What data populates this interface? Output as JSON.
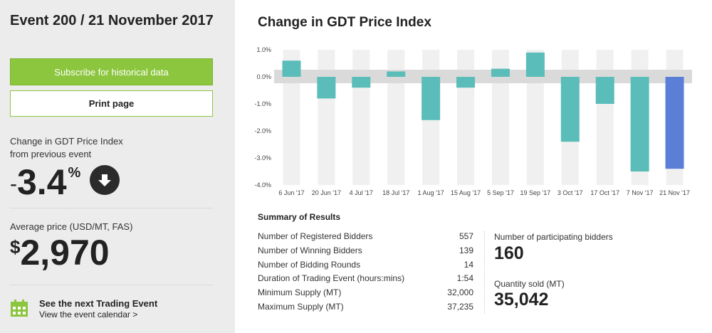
{
  "sidebar": {
    "event_title": "Event 200 / 21 November 2017",
    "subscribe_label": "Subscribe for historical data",
    "print_label": "Print page",
    "change_label_line1": "Change in GDT Price Index",
    "change_label_line2": "from previous event",
    "change_sign": "-",
    "change_value": "3.4",
    "change_unit": "%",
    "avg_label": "Average price (USD/MT, FAS)",
    "avg_currency": "$",
    "avg_value": "2,970",
    "next_title": "See the next Trading Event",
    "next_link": "View the event calendar >"
  },
  "main": {
    "chart_title": "Change in GDT Price Index"
  },
  "summary": {
    "title": "Summary of Results",
    "rows": [
      {
        "label": "Number of Registered Bidders",
        "value": "557"
      },
      {
        "label": "Number of Winning Bidders",
        "value": "139"
      },
      {
        "label": "Number of Bidding Rounds",
        "value": "14"
      },
      {
        "label": "Duration of Trading Event (hours:mins)",
        "value": "1:54"
      },
      {
        "label": "Minimum Supply (MT)",
        "value": "32,000"
      },
      {
        "label": "Maximum Supply (MT)",
        "value": "37,235"
      }
    ],
    "participating_label": "Number of participating bidders",
    "participating_value": "160",
    "quantity_label": "Quantity sold (MT)",
    "quantity_value": "35,042"
  },
  "chart_data": {
    "type": "bar",
    "title": "Change in GDT Price Index",
    "xlabel": "",
    "ylabel": "",
    "categories": [
      "6 Jun '17",
      "20 Jun '17",
      "4 Jul '17",
      "18 Jul '17",
      "1 Aug '17",
      "15 Aug '17",
      "5 Sep '17",
      "19 Sep '17",
      "3 Oct '17",
      "17 Oct '17",
      "7 Nov '17",
      "21 Nov '17"
    ],
    "values": [
      0.6,
      -0.8,
      -0.4,
      0.2,
      -1.6,
      -0.4,
      0.3,
      0.9,
      -2.4,
      -1.0,
      -3.5,
      -3.4
    ],
    "y_ticks": [
      "1.0%",
      "0.0%",
      "-1.0%",
      "-2.0%",
      "-3.0%",
      "-4.0%"
    ],
    "ylim": [
      -4.0,
      1.0
    ],
    "grid": false,
    "colors": {
      "bar": "#5bbdb9",
      "highlight": "#5b7fd6",
      "column_bg": "#f0f0f0",
      "zero_band": "#dadada"
    }
  }
}
